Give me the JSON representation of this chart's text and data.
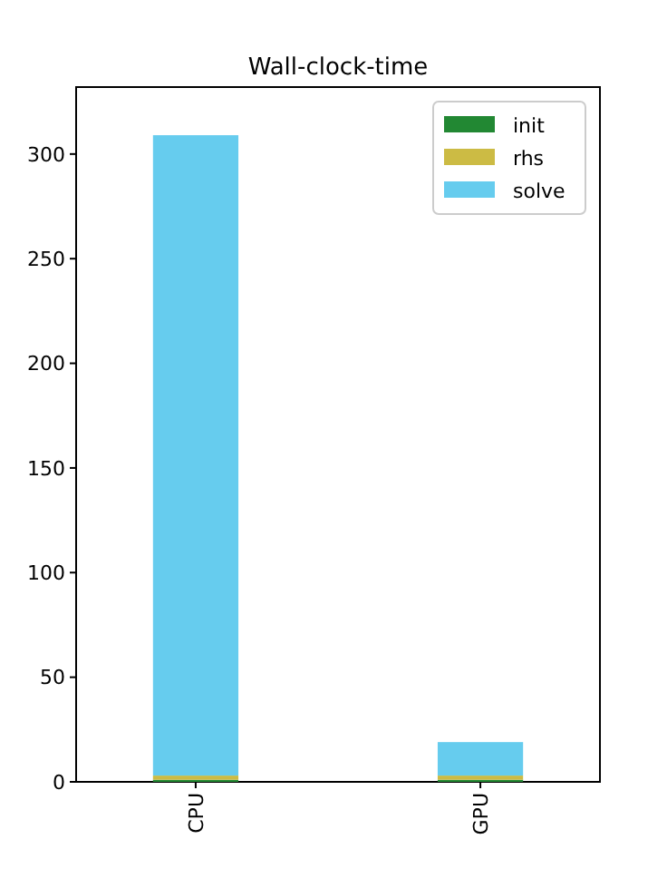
{
  "chart_data": {
    "type": "bar",
    "title": "Wall-clock-time",
    "categories": [
      "CPU",
      "GPU"
    ],
    "stacked": true,
    "series": [
      {
        "name": "init",
        "color": "#228833",
        "values": [
          1,
          1
        ]
      },
      {
        "name": "rhs",
        "color": "#ccbb44",
        "values": [
          2,
          2
        ]
      },
      {
        "name": "solve",
        "color": "#66ccee",
        "values": [
          306,
          16
        ]
      }
    ],
    "ylim": [
      0,
      332
    ],
    "yticks": [
      0,
      50,
      100,
      150,
      200,
      250,
      300
    ],
    "legend": "top right"
  }
}
